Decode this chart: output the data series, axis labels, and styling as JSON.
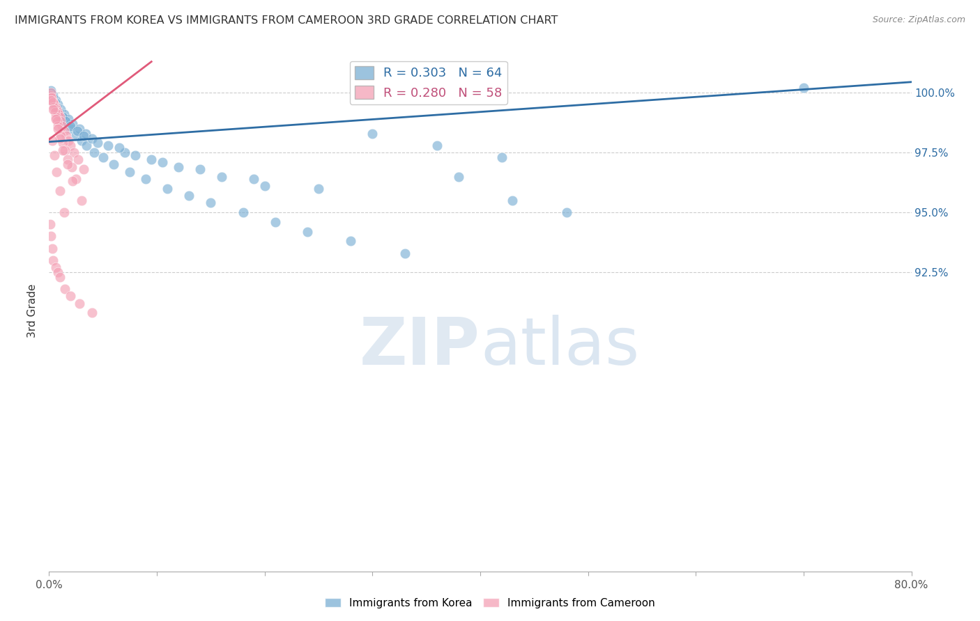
{
  "title": "IMMIGRANTS FROM KOREA VS IMMIGRANTS FROM CAMEROON 3RD GRADE CORRELATION CHART",
  "source": "Source: ZipAtlas.com",
  "ylabel": "3rd Grade",
  "xlim": [
    0.0,
    80.0
  ],
  "ylim": [
    80.0,
    101.8
  ],
  "y_tick_vals": [
    92.5,
    95.0,
    97.5,
    100.0
  ],
  "y_tick_labels": [
    "92.5%",
    "95.0%",
    "97.5%",
    "100.0%"
  ],
  "x_tick_vals": [
    0,
    10,
    20,
    30,
    40,
    50,
    60,
    70,
    80
  ],
  "x_tick_labels": [
    "0.0%",
    "",
    "",
    "",
    "",
    "",
    "",
    "",
    "80.0%"
  ],
  "korea_color": "#7bafd4",
  "cameroon_color": "#f4a0b5",
  "korea_line_color": "#2e6da4",
  "cameroon_line_color": "#e05a7a",
  "background_color": "#ffffff",
  "korea_line_x": [
    0,
    80
  ],
  "korea_line_y": [
    97.95,
    100.45
  ],
  "cameroon_line_x": [
    0,
    9.5
  ],
  "cameroon_line_y": [
    98.05,
    101.3
  ],
  "korea_x": [
    0.3,
    0.5,
    0.7,
    1.0,
    1.3,
    1.6,
    2.0,
    2.5,
    3.0,
    3.5,
    4.2,
    5.0,
    6.0,
    7.5,
    9.0,
    11.0,
    13.0,
    15.0,
    18.0,
    21.0,
    24.0,
    28.0,
    33.0,
    38.0,
    43.0,
    48.0,
    0.2,
    0.4,
    0.6,
    0.8,
    1.1,
    1.4,
    1.8,
    2.2,
    2.8,
    3.4,
    4.0,
    5.5,
    7.0,
    9.5,
    12.0,
    16.0,
    20.0,
    0.15,
    0.35,
    0.55,
    0.75,
    0.95,
    1.25,
    1.55,
    2.0,
    2.6,
    3.2,
    4.5,
    6.5,
    8.0,
    10.5,
    14.0,
    19.0,
    25.0,
    30.0,
    36.0,
    42.0,
    70.0
  ],
  "korea_y": [
    99.8,
    99.6,
    99.4,
    99.2,
    99.0,
    98.8,
    98.5,
    98.2,
    98.0,
    97.8,
    97.5,
    97.3,
    97.0,
    96.7,
    96.4,
    96.0,
    95.7,
    95.4,
    95.0,
    94.6,
    94.2,
    93.8,
    93.3,
    96.5,
    95.5,
    95.0,
    100.0,
    99.9,
    99.7,
    99.5,
    99.3,
    99.1,
    98.9,
    98.7,
    98.5,
    98.3,
    98.1,
    97.8,
    97.5,
    97.2,
    96.9,
    96.5,
    96.1,
    100.1,
    99.8,
    99.6,
    99.4,
    99.2,
    99.0,
    98.8,
    98.6,
    98.4,
    98.2,
    97.9,
    97.7,
    97.4,
    97.1,
    96.8,
    96.4,
    96.0,
    98.3,
    97.8,
    97.3,
    100.2
  ],
  "cameroon_x": [
    0.1,
    0.2,
    0.3,
    0.4,
    0.5,
    0.6,
    0.7,
    0.8,
    0.9,
    1.0,
    1.1,
    1.2,
    1.4,
    1.6,
    1.8,
    2.0,
    2.3,
    2.7,
    3.2,
    0.15,
    0.25,
    0.35,
    0.45,
    0.55,
    0.65,
    0.75,
    0.85,
    1.05,
    1.25,
    1.5,
    1.75,
    2.1,
    2.5,
    0.2,
    0.4,
    0.6,
    0.8,
    1.0,
    1.3,
    1.7,
    2.2,
    3.0,
    0.3,
    0.5,
    0.7,
    1.0,
    1.4,
    0.1,
    0.2,
    0.3,
    0.4,
    0.6,
    0.8,
    1.0,
    1.5,
    2.0,
    2.8,
    4.0
  ],
  "cameroon_y": [
    99.9,
    99.8,
    99.7,
    99.6,
    99.5,
    99.4,
    99.3,
    99.2,
    99.1,
    99.0,
    98.8,
    98.6,
    98.4,
    98.2,
    98.0,
    97.8,
    97.5,
    97.2,
    96.8,
    100.0,
    99.8,
    99.6,
    99.4,
    99.2,
    99.0,
    98.8,
    98.6,
    98.2,
    97.9,
    97.6,
    97.2,
    96.9,
    96.4,
    99.7,
    99.3,
    98.9,
    98.5,
    98.1,
    97.6,
    97.0,
    96.3,
    95.5,
    98.0,
    97.4,
    96.7,
    95.9,
    95.0,
    94.5,
    94.0,
    93.5,
    93.0,
    92.7,
    92.5,
    92.3,
    91.8,
    91.5,
    91.2,
    90.8
  ]
}
